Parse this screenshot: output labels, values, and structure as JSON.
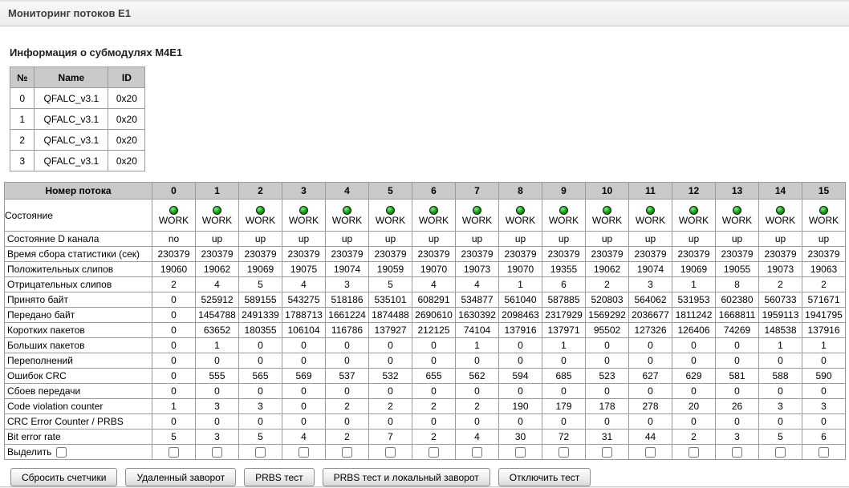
{
  "header": {
    "title": "Мониторинг потоков E1"
  },
  "submodules": {
    "title": "Информация о субмодулях M4E1",
    "columns": [
      "№",
      "Name",
      "ID"
    ],
    "rows": [
      {
        "num": "0",
        "name": "QFALC_v3.1",
        "id": "0x20"
      },
      {
        "num": "1",
        "name": "QFALC_v3.1",
        "id": "0x20"
      },
      {
        "num": "2",
        "name": "QFALC_v3.1",
        "id": "0x20"
      },
      {
        "num": "3",
        "name": "QFALC_v3.1",
        "id": "0x20"
      }
    ]
  },
  "monitor": {
    "corner_label": "Номер потока",
    "columns": [
      "0",
      "1",
      "2",
      "3",
      "4",
      "5",
      "6",
      "7",
      "8",
      "9",
      "10",
      "11",
      "12",
      "13",
      "14",
      "15"
    ],
    "status_row": {
      "label": "Состояние",
      "values": [
        "WORK",
        "WORK",
        "WORK",
        "WORK",
        "WORK",
        "WORK",
        "WORK",
        "WORK",
        "WORK",
        "WORK",
        "WORK",
        "WORK",
        "WORK",
        "WORK",
        "WORK",
        "WORK"
      ]
    },
    "d_channel_row": {
      "label": "Состояние D канала",
      "values": [
        "no",
        "up",
        "up",
        "up",
        "up",
        "up",
        "up",
        "up",
        "up",
        "up",
        "up",
        "up",
        "up",
        "up",
        "up",
        "up"
      ]
    },
    "counter_rows": [
      {
        "label": "Время сбора статистики (сек)",
        "values": [
          230379,
          230379,
          230379,
          230379,
          230379,
          230379,
          230379,
          230379,
          230379,
          230379,
          230379,
          230379,
          230379,
          230379,
          230379,
          230379
        ]
      },
      {
        "label": "Положительных слипов",
        "values": [
          19060,
          19062,
          19069,
          19075,
          19074,
          19059,
          19070,
          19073,
          19070,
          19355,
          19062,
          19074,
          19069,
          19055,
          19073,
          19063
        ]
      },
      {
        "label": "Отрицательных слипов",
        "values": [
          2,
          4,
          5,
          4,
          3,
          5,
          4,
          4,
          1,
          6,
          2,
          3,
          1,
          8,
          2,
          2
        ]
      },
      {
        "label": "Принято байт",
        "values": [
          0,
          525912,
          589155,
          543275,
          518186,
          535101,
          608291,
          534877,
          561040,
          587885,
          520803,
          564062,
          531953,
          602380,
          560733,
          571671
        ]
      },
      {
        "label": "Передано байт",
        "values": [
          0,
          1454788,
          2491339,
          1788713,
          1661224,
          1874488,
          2690610,
          1630392,
          2098463,
          2317929,
          1569292,
          2036677,
          1811242,
          1668811,
          1959113,
          1941795
        ]
      },
      {
        "label": "Коротких пакетов",
        "values": [
          0,
          63652,
          180355,
          106104,
          116786,
          137927,
          212125,
          74104,
          137916,
          137971,
          95502,
          127326,
          126406,
          74269,
          148538,
          137916
        ]
      },
      {
        "label": "Больших пакетов",
        "values": [
          0,
          1,
          0,
          0,
          0,
          0,
          0,
          1,
          0,
          1,
          0,
          0,
          0,
          0,
          1,
          1
        ]
      },
      {
        "label": "Переполнений",
        "values": [
          0,
          0,
          0,
          0,
          0,
          0,
          0,
          0,
          0,
          0,
          0,
          0,
          0,
          0,
          0,
          0
        ]
      },
      {
        "label": "Ошибок CRC",
        "values": [
          0,
          555,
          565,
          569,
          537,
          532,
          655,
          562,
          594,
          685,
          523,
          627,
          629,
          581,
          588,
          590
        ]
      },
      {
        "label": "Сбоев передачи",
        "values": [
          0,
          0,
          0,
          0,
          0,
          0,
          0,
          0,
          0,
          0,
          0,
          0,
          0,
          0,
          0,
          0
        ]
      },
      {
        "label": "Code violation counter",
        "values": [
          1,
          3,
          3,
          0,
          2,
          2,
          2,
          2,
          190,
          179,
          178,
          278,
          20,
          26,
          3,
          3
        ]
      },
      {
        "label": "CRC Error Counter / PRBS",
        "values": [
          0,
          0,
          0,
          0,
          0,
          0,
          0,
          0,
          0,
          0,
          0,
          0,
          0,
          0,
          0,
          0
        ]
      },
      {
        "label": "Bit error rate",
        "values": [
          5,
          3,
          5,
          4,
          2,
          7,
          2,
          4,
          30,
          72,
          31,
          44,
          2,
          3,
          5,
          6
        ]
      }
    ],
    "select_row": {
      "label": "Выделить",
      "checked": false
    }
  },
  "actions": {
    "buttons": [
      "Сбросить счетчики",
      "Удаленный заворот",
      "PRBS тест",
      "PRBS тест и локальный заворот",
      "Отключить тест"
    ]
  },
  "colors": {
    "led_ok": "#0da00d",
    "table_header_bg": "#c9c9c9"
  }
}
